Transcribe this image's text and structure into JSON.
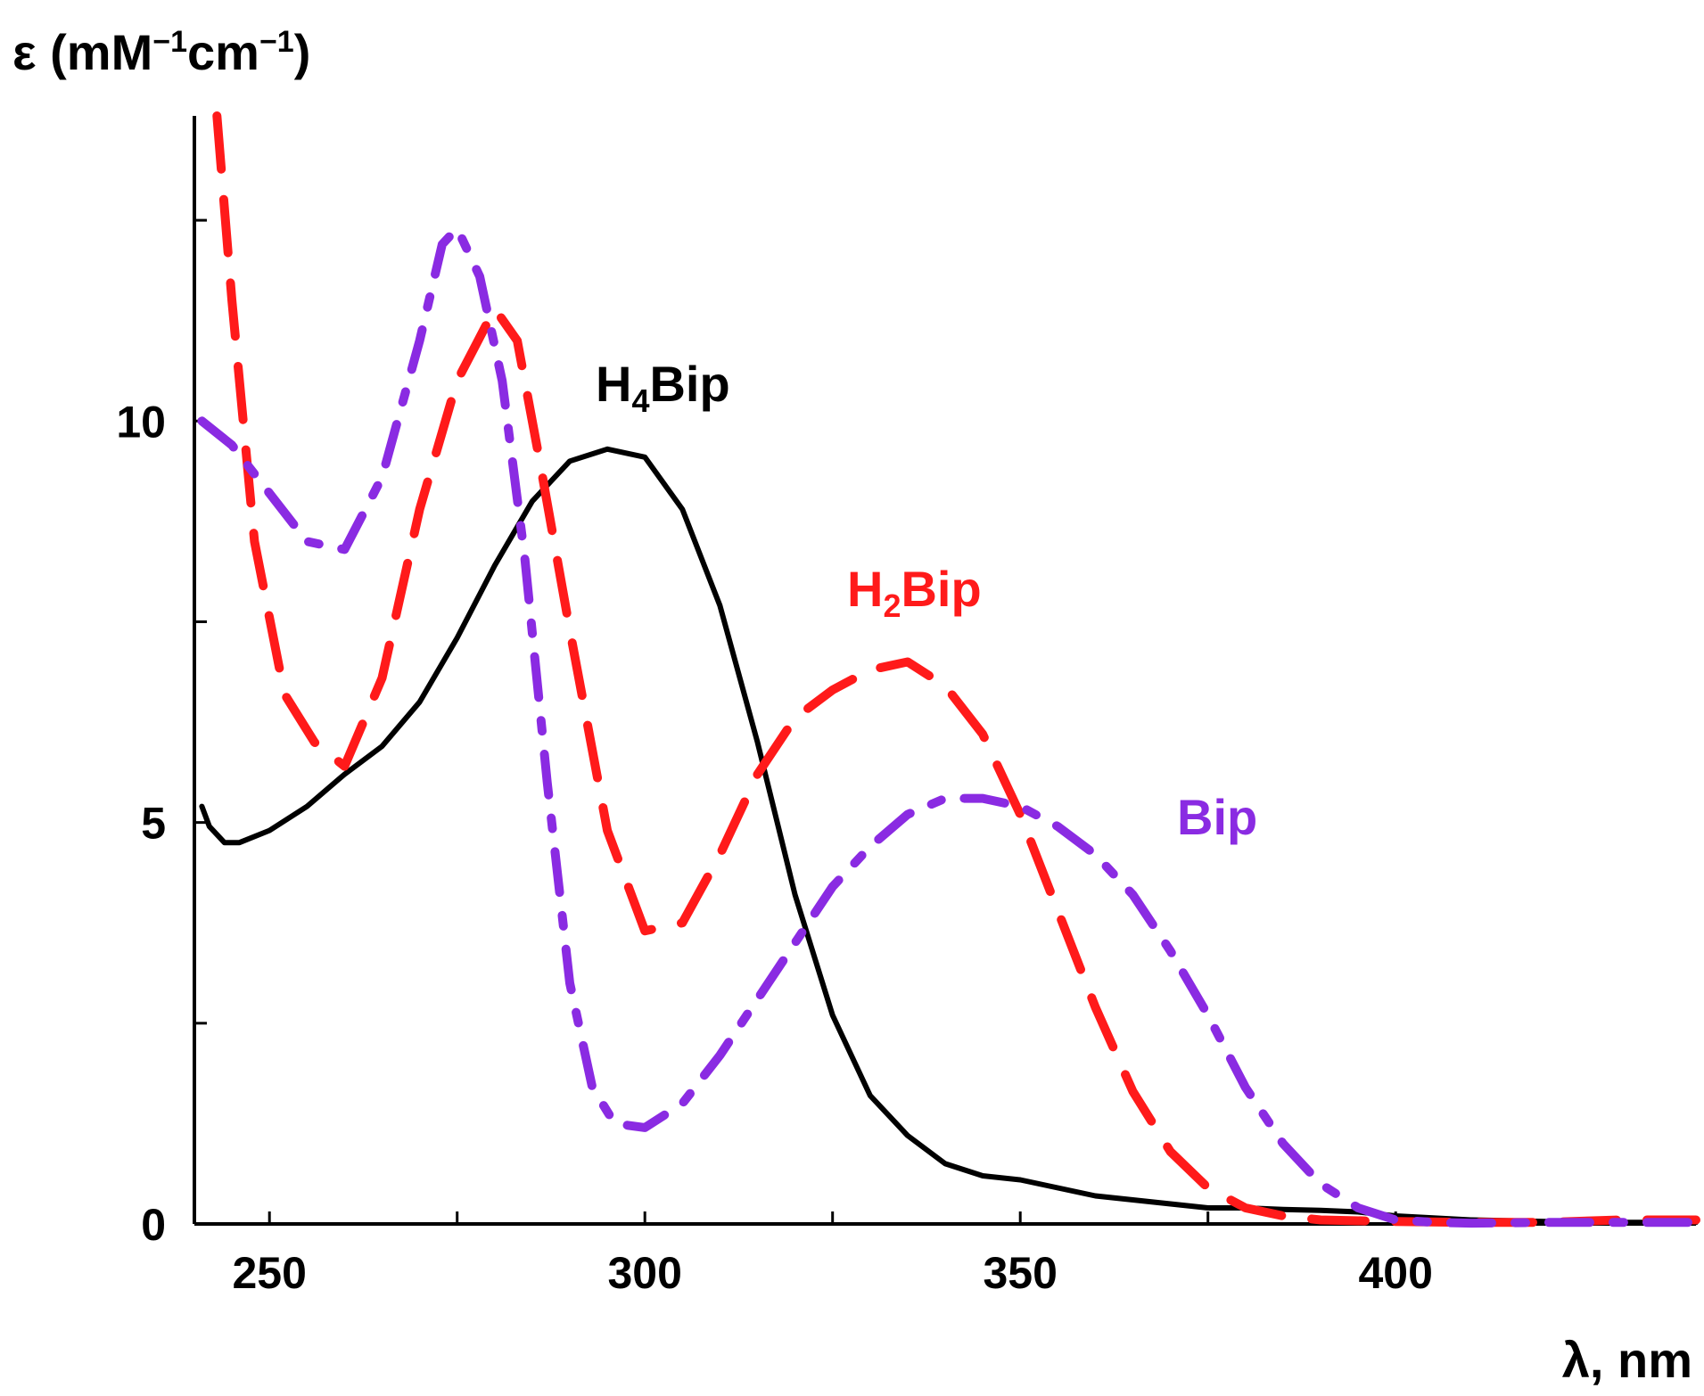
{
  "chart_data": {
    "type": "line",
    "title": "",
    "xlabel": "λ, nm",
    "ylabel_parts": {
      "base": "ε (mM",
      "sup1": "−1",
      "mid": "cm",
      "sup2": "−1",
      "close": ")"
    },
    "xlim": [
      240,
      440
    ],
    "ylim": [
      0,
      13.8
    ],
    "x_ticks": [
      250,
      300,
      350,
      400
    ],
    "y_ticks": [
      0,
      5,
      10
    ],
    "y_minor_ticks": [
      2.5,
      7.5,
      12.5
    ],
    "x_minor_ticks": [
      275,
      325,
      375
    ],
    "grid": false,
    "legend": "none (inline labels)",
    "colors": {
      "H4Bip": "#000000",
      "H2Bip": "#ff1a1a",
      "Bip": "#8a2be2"
    },
    "labels": {
      "H4Bip": {
        "main": "H",
        "sub": "4",
        "rest": "Bip"
      },
      "H2Bip": {
        "main": "H",
        "sub": "2",
        "rest": "Bip"
      },
      "Bip": {
        "main": "Bip",
        "sub": "",
        "rest": ""
      }
    },
    "series": [
      {
        "name": "H4Bip",
        "style": "solid",
        "x": [
          241,
          242,
          244,
          246,
          250,
          255,
          260,
          265,
          270,
          275,
          280,
          285,
          290,
          295,
          300,
          305,
          310,
          315,
          320,
          325,
          330,
          335,
          340,
          345,
          350,
          355,
          360,
          365,
          370,
          375,
          380,
          385,
          390,
          395,
          400,
          410,
          420,
          430,
          440
        ],
        "y": [
          5.2,
          4.95,
          4.75,
          4.75,
          4.9,
          5.2,
          5.6,
          5.95,
          6.5,
          7.3,
          8.2,
          9.0,
          9.5,
          9.65,
          9.55,
          8.9,
          7.7,
          6.0,
          4.1,
          2.6,
          1.6,
          1.1,
          0.75,
          0.6,
          0.55,
          0.45,
          0.35,
          0.3,
          0.25,
          0.2,
          0.2,
          0.18,
          0.17,
          0.15,
          0.1,
          0.05,
          0.03,
          0.02,
          0.02
        ]
      },
      {
        "name": "H2Bip",
        "style": "dashed",
        "x": [
          243,
          245,
          248,
          252,
          256,
          260,
          265,
          270,
          275,
          280,
          283,
          286,
          290,
          295,
          300,
          305,
          310,
          315,
          320,
          325,
          330,
          335,
          340,
          345,
          350,
          355,
          360,
          365,
          370,
          375,
          380,
          385,
          390,
          400,
          410,
          420,
          430,
          440
        ],
        "y": [
          13.8,
          11.5,
          8.5,
          6.6,
          6.0,
          5.7,
          6.8,
          8.9,
          10.5,
          11.4,
          11.0,
          9.5,
          7.4,
          4.9,
          3.65,
          3.75,
          4.6,
          5.6,
          6.3,
          6.65,
          6.9,
          7.0,
          6.7,
          6.1,
          5.1,
          3.9,
          2.7,
          1.65,
          0.9,
          0.45,
          0.2,
          0.1,
          0.05,
          0.03,
          0.02,
          0.02,
          0.05,
          0.05
        ]
      },
      {
        "name": "Bip",
        "style": "dashdot",
        "x": [
          241,
          245,
          250,
          255,
          260,
          265,
          270,
          273,
          275,
          278,
          281,
          284,
          287,
          290,
          293,
          296,
          300,
          305,
          310,
          315,
          320,
          325,
          330,
          335,
          340,
          345,
          350,
          355,
          360,
          365,
          370,
          375,
          380,
          385,
          390,
          395,
          400,
          405,
          410,
          420,
          430,
          440
        ],
        "y": [
          10.0,
          9.7,
          9.1,
          8.5,
          8.4,
          9.3,
          11.0,
          12.2,
          12.4,
          11.8,
          10.5,
          8.3,
          5.5,
          3.0,
          1.7,
          1.25,
          1.2,
          1.5,
          2.1,
          2.8,
          3.5,
          4.2,
          4.7,
          5.1,
          5.3,
          5.3,
          5.2,
          4.95,
          4.6,
          4.1,
          3.4,
          2.6,
          1.7,
          1.0,
          0.5,
          0.2,
          0.05,
          0.02,
          0.01,
          0.02,
          0.02,
          0.02
        ]
      }
    ]
  }
}
